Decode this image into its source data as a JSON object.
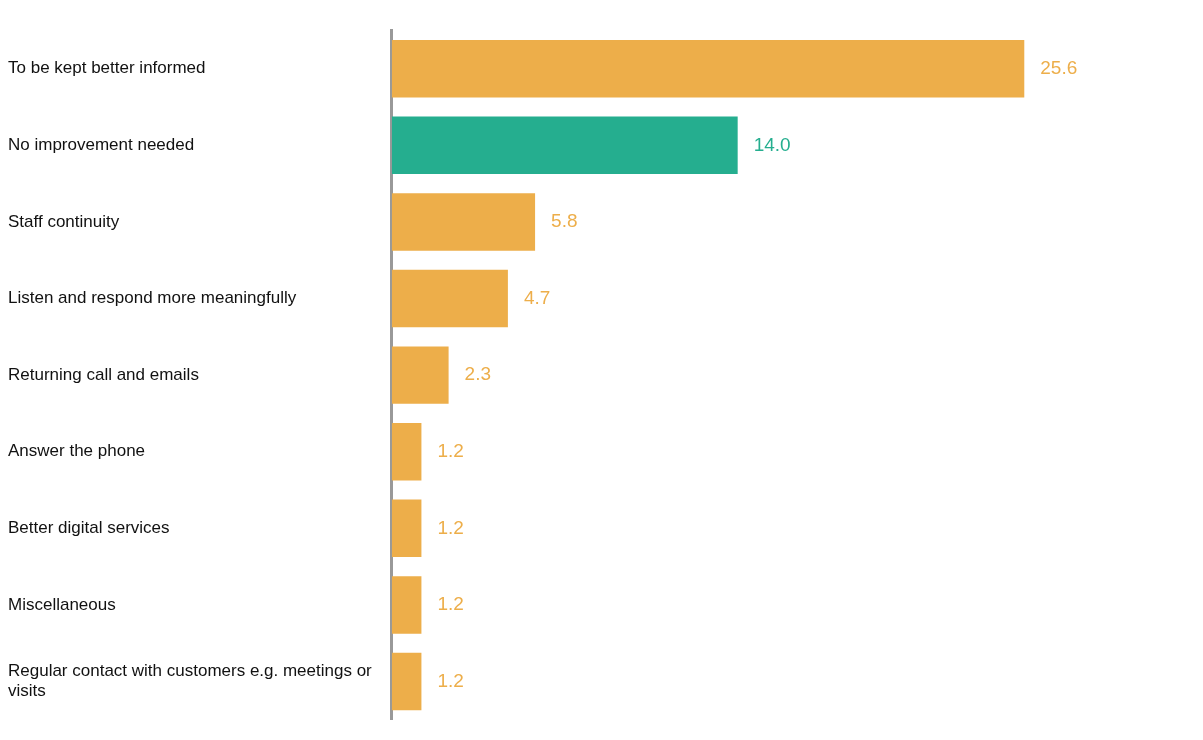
{
  "chart_data": {
    "type": "bar",
    "orientation": "horizontal",
    "categories": [
      "To be kept better informed",
      "No improvement needed",
      "Staff continuity",
      "Listen and respond more meaningfully",
      "Returning call and emails",
      "Answer the phone",
      "Better digital services",
      "Miscellaneous",
      "Regular contact with customers e.g. meetings or visits"
    ],
    "values": [
      25.6,
      14.0,
      5.8,
      4.7,
      2.3,
      1.2,
      1.2,
      1.2,
      1.2
    ],
    "colors": [
      "#edae4a",
      "#25ae8f",
      "#edae4a",
      "#edae4a",
      "#edae4a",
      "#edae4a",
      "#edae4a",
      "#edae4a",
      "#edae4a"
    ],
    "value_labels": [
      "25.6",
      "14.0",
      "5.8",
      "4.7",
      "2.3",
      "1.2",
      "1.2",
      "1.2",
      "1.2"
    ],
    "grid": false,
    "legend": false
  }
}
